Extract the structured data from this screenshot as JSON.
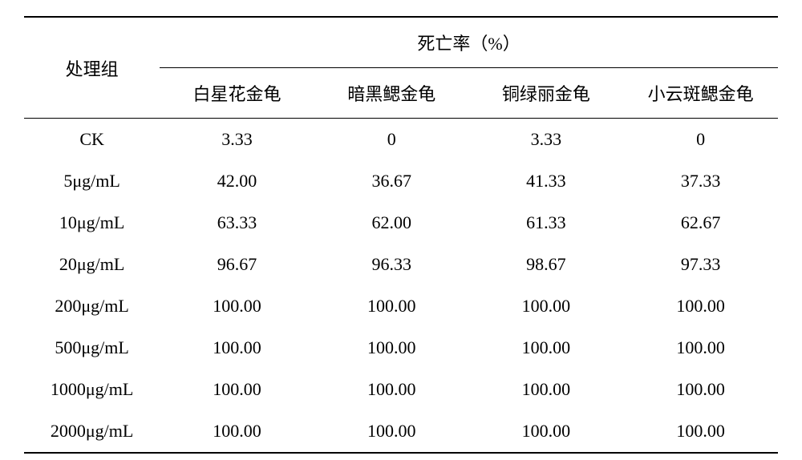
{
  "table": {
    "type": "table",
    "background_color": "#ffffff",
    "text_color": "#000000",
    "border_color": "#000000",
    "font_family": "SimSun",
    "font_size": 22,
    "header": {
      "treatment_label": "处理组",
      "mortality_label": "死亡率（%）",
      "species": [
        "白星花金龟",
        "暗黑鳃金龟",
        "铜绿丽金龟",
        "小云斑鳃金龟"
      ]
    },
    "rows": [
      {
        "treatment": "CK",
        "values": [
          "3.33",
          "0",
          "3.33",
          "0"
        ]
      },
      {
        "treatment": "5μg/mL",
        "values": [
          "42.00",
          "36.67",
          "41.33",
          "37.33"
        ]
      },
      {
        "treatment": "10μg/mL",
        "values": [
          "63.33",
          "62.00",
          "61.33",
          "62.67"
        ]
      },
      {
        "treatment": "20μg/mL",
        "values": [
          "96.67",
          "96.33",
          "98.67",
          "97.33"
        ]
      },
      {
        "treatment": "200μg/mL",
        "values": [
          "100.00",
          "100.00",
          "100.00",
          "100.00"
        ]
      },
      {
        "treatment": "500μg/mL",
        "values": [
          "100.00",
          "100.00",
          "100.00",
          "100.00"
        ]
      },
      {
        "treatment": "1000μg/mL",
        "values": [
          "100.00",
          "100.00",
          "100.00",
          "100.00"
        ]
      },
      {
        "treatment": "2000μg/mL",
        "values": [
          "100.00",
          "100.00",
          "100.00",
          "100.00"
        ]
      }
    ],
    "column_widths": [
      "18%",
      "20.5%",
      "20.5%",
      "20.5%",
      "20.5%"
    ]
  }
}
